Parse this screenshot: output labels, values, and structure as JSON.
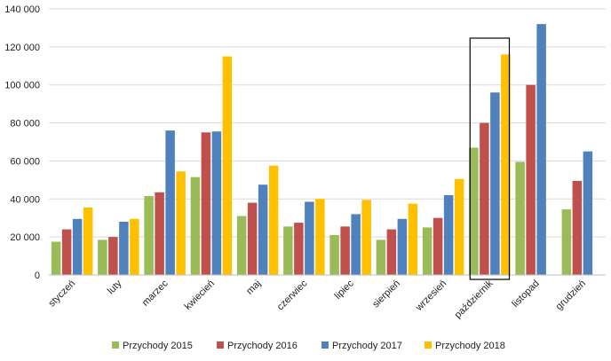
{
  "chart_data": {
    "type": "bar",
    "title": "",
    "xlabel": "",
    "ylabel": "",
    "ylim": [
      0,
      140000
    ],
    "ytick_values": [
      0,
      20000,
      40000,
      60000,
      80000,
      100000,
      120000,
      140000
    ],
    "ytick_labels": [
      "0",
      "20 000",
      "40 000",
      "60 000",
      "80 000",
      "100 000",
      "120 000",
      "140 000"
    ],
    "grid": true,
    "legend_position": "bottom",
    "categories": [
      "styczeń",
      "luty",
      "marzec",
      "kwiecień",
      "maj",
      "czerwiec",
      "lipiec",
      "sierpień",
      "wrzesień",
      "październik",
      "listopad",
      "grudzień"
    ],
    "highlighted_category": "październik",
    "series": [
      {
        "name": "Przychody 2015",
        "color": "#9bbb59",
        "values": [
          17500,
          18500,
          41500,
          51500,
          31000,
          25500,
          21000,
          18500,
          25000,
          67000,
          59500,
          34500
        ]
      },
      {
        "name": "Przychody 2016",
        "color": "#c0504d",
        "values": [
          24000,
          20000,
          43500,
          75000,
          38000,
          27500,
          25500,
          24000,
          30000,
          80000,
          100000,
          49500
        ]
      },
      {
        "name": "Przychody 2017",
        "color": "#4f81bd",
        "values": [
          29500,
          28000,
          76000,
          75500,
          47500,
          38500,
          32000,
          29500,
          42000,
          96000,
          132000,
          65000
        ]
      },
      {
        "name": "Przychody 2018",
        "color": "#ffc000",
        "values": [
          35500,
          29500,
          54500,
          115000,
          57500,
          40000,
          39500,
          37500,
          50500,
          116000,
          null,
          null
        ]
      }
    ]
  }
}
